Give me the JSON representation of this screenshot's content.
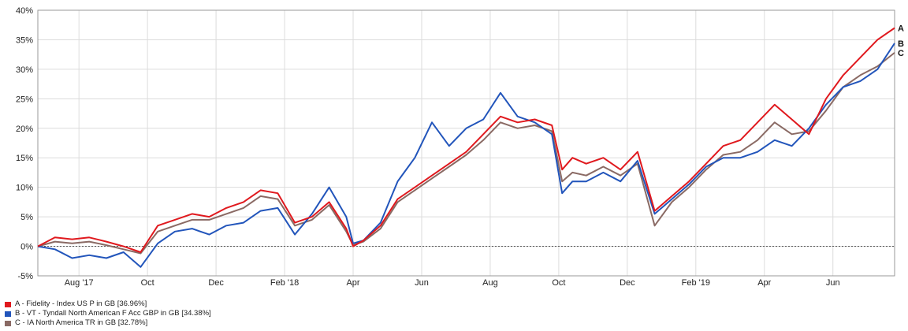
{
  "chart_data": {
    "type": "line",
    "y_ticks": [
      "40%",
      "35%",
      "30%",
      "25%",
      "20%",
      "15%",
      "10%",
      "5%",
      "0%",
      "-5%"
    ],
    "ylim": [
      -5,
      40
    ],
    "x_ticks": [
      {
        "label": "Aug '17",
        "m": 1.2
      },
      {
        "label": "Oct",
        "m": 3.2
      },
      {
        "label": "Dec",
        "m": 5.2
      },
      {
        "label": "Feb '18",
        "m": 7.2
      },
      {
        "label": "Apr",
        "m": 9.2
      },
      {
        "label": "Jun",
        "m": 11.2
      },
      {
        "label": "Aug",
        "m": 13.2
      },
      {
        "label": "Oct",
        "m": 15.2
      },
      {
        "label": "Dec",
        "m": 17.2
      },
      {
        "label": "Feb '19",
        "m": 19.2
      },
      {
        "label": "Apr",
        "m": 21.2
      },
      {
        "label": "Jun",
        "m": 23.2
      }
    ],
    "xlim": [
      0,
      25
    ],
    "grid": true,
    "legend_position": "bottom-left",
    "series": [
      {
        "name": "A - Fidelity - Index US P in GB [36.96%]",
        "end_label": "A",
        "color": "#e0191e",
        "points": [
          [
            0,
            0
          ],
          [
            0.5,
            1.5
          ],
          [
            1,
            1.2
          ],
          [
            1.5,
            1.5
          ],
          [
            2,
            0.8
          ],
          [
            2.5,
            0
          ],
          [
            3,
            -1
          ],
          [
            3.5,
            3.5
          ],
          [
            4,
            4.5
          ],
          [
            4.5,
            5.5
          ],
          [
            5,
            5
          ],
          [
            5.5,
            6.5
          ],
          [
            6,
            7.5
          ],
          [
            6.5,
            9.5
          ],
          [
            7,
            9
          ],
          [
            7.5,
            4
          ],
          [
            8,
            5
          ],
          [
            8.5,
            7.5
          ],
          [
            9,
            3
          ],
          [
            9.2,
            0
          ],
          [
            9.5,
            1
          ],
          [
            10,
            3.5
          ],
          [
            10.5,
            8
          ],
          [
            11,
            10
          ],
          [
            11.5,
            12
          ],
          [
            12,
            14
          ],
          [
            12.5,
            16
          ],
          [
            13,
            19
          ],
          [
            13.5,
            22
          ],
          [
            14,
            21
          ],
          [
            14.5,
            21.5
          ],
          [
            15,
            20.5
          ],
          [
            15.3,
            13
          ],
          [
            15.6,
            15
          ],
          [
            16,
            14
          ],
          [
            16.5,
            15
          ],
          [
            17,
            13
          ],
          [
            17.5,
            16
          ],
          [
            18,
            6
          ],
          [
            18.5,
            8.5
          ],
          [
            19,
            11
          ],
          [
            19.5,
            14
          ],
          [
            20,
            17
          ],
          [
            20.5,
            18
          ],
          [
            21,
            21
          ],
          [
            21.5,
            24
          ],
          [
            22,
            21.5
          ],
          [
            22.5,
            19
          ],
          [
            23,
            25
          ],
          [
            23.5,
            29
          ],
          [
            24,
            32
          ],
          [
            24.5,
            35
          ],
          [
            25,
            37
          ]
        ]
      },
      {
        "name": "B - VT - Tyndall North American F Acc GBP in GB [34.38%]",
        "end_label": "B",
        "color": "#2255bb",
        "points": [
          [
            0,
            0
          ],
          [
            0.5,
            -0.5
          ],
          [
            1,
            -2
          ],
          [
            1.5,
            -1.5
          ],
          [
            2,
            -2
          ],
          [
            2.5,
            -1
          ],
          [
            3,
            -3.5
          ],
          [
            3.5,
            0.5
          ],
          [
            4,
            2.5
          ],
          [
            4.5,
            3
          ],
          [
            5,
            2
          ],
          [
            5.5,
            3.5
          ],
          [
            6,
            4
          ],
          [
            6.5,
            6
          ],
          [
            7,
            6.5
          ],
          [
            7.5,
            2
          ],
          [
            8,
            5.5
          ],
          [
            8.5,
            10
          ],
          [
            9,
            5
          ],
          [
            9.2,
            0.5
          ],
          [
            9.5,
            1
          ],
          [
            10,
            4
          ],
          [
            10.5,
            11
          ],
          [
            11,
            15
          ],
          [
            11.5,
            21
          ],
          [
            12,
            17
          ],
          [
            12.5,
            20
          ],
          [
            13,
            21.5
          ],
          [
            13.5,
            26
          ],
          [
            14,
            22
          ],
          [
            14.5,
            21
          ],
          [
            15,
            19
          ],
          [
            15.3,
            9
          ],
          [
            15.6,
            11
          ],
          [
            16,
            11
          ],
          [
            16.5,
            12.5
          ],
          [
            17,
            11
          ],
          [
            17.5,
            14.5
          ],
          [
            18,
            5.5
          ],
          [
            18.5,
            8
          ],
          [
            19,
            10.5
          ],
          [
            19.5,
            13.5
          ],
          [
            20,
            15
          ],
          [
            20.5,
            15
          ],
          [
            21,
            16
          ],
          [
            21.5,
            18
          ],
          [
            22,
            17
          ],
          [
            22.5,
            20
          ],
          [
            23,
            24
          ],
          [
            23.5,
            27
          ],
          [
            24,
            28
          ],
          [
            24.5,
            30
          ],
          [
            25,
            34.4
          ]
        ]
      },
      {
        "name": "C - IA North America TR in GB [32.78%]",
        "end_label": "C",
        "color": "#8a6a64",
        "points": [
          [
            0,
            0
          ],
          [
            0.5,
            0.8
          ],
          [
            1,
            0.5
          ],
          [
            1.5,
            0.8
          ],
          [
            2,
            0.2
          ],
          [
            2.5,
            -0.5
          ],
          [
            3,
            -1.2
          ],
          [
            3.5,
            2.5
          ],
          [
            4,
            3.5
          ],
          [
            4.5,
            4.5
          ],
          [
            5,
            4.5
          ],
          [
            5.5,
            5.5
          ],
          [
            6,
            6.5
          ],
          [
            6.5,
            8.5
          ],
          [
            7,
            8
          ],
          [
            7.5,
            3.5
          ],
          [
            8,
            4.5
          ],
          [
            8.5,
            7
          ],
          [
            9,
            2.5
          ],
          [
            9.2,
            0.2
          ],
          [
            9.5,
            0.8
          ],
          [
            10,
            3
          ],
          [
            10.5,
            7.5
          ],
          [
            11,
            9.5
          ],
          [
            11.5,
            11.5
          ],
          [
            12,
            13.5
          ],
          [
            12.5,
            15.5
          ],
          [
            13,
            18
          ],
          [
            13.5,
            21
          ],
          [
            14,
            20
          ],
          [
            14.5,
            20.5
          ],
          [
            15,
            19.5
          ],
          [
            15.3,
            11
          ],
          [
            15.6,
            12.5
          ],
          [
            16,
            12
          ],
          [
            16.5,
            13.5
          ],
          [
            17,
            12
          ],
          [
            17.5,
            14
          ],
          [
            18,
            3.5
          ],
          [
            18.5,
            7.5
          ],
          [
            19,
            10
          ],
          [
            19.5,
            13
          ],
          [
            20,
            15.5
          ],
          [
            20.5,
            16
          ],
          [
            21,
            18
          ],
          [
            21.5,
            21
          ],
          [
            22,
            19
          ],
          [
            22.5,
            19.5
          ],
          [
            23,
            23
          ],
          [
            23.5,
            27
          ],
          [
            24,
            29
          ],
          [
            24.5,
            30.5
          ],
          [
            25,
            32.8
          ]
        ]
      }
    ]
  }
}
